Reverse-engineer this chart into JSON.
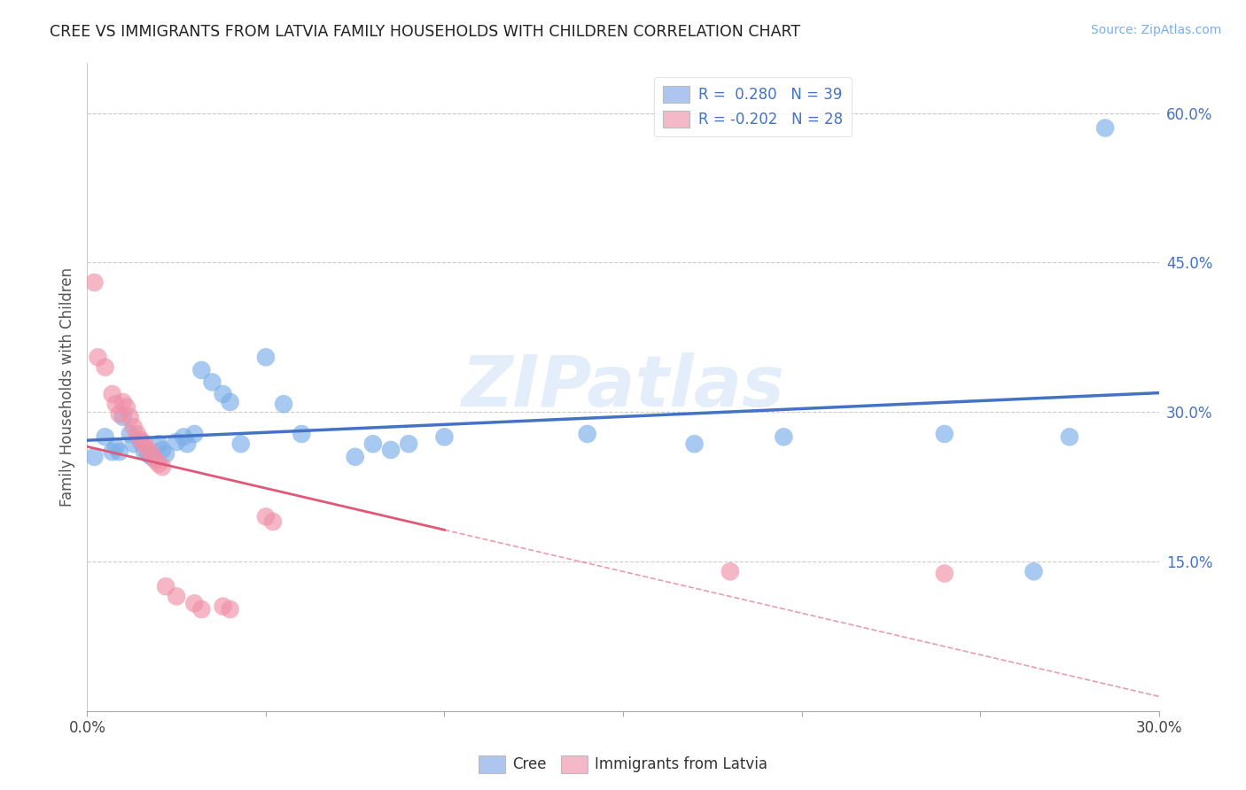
{
  "title": "CREE VS IMMIGRANTS FROM LATVIA FAMILY HOUSEHOLDS WITH CHILDREN CORRELATION CHART",
  "source": "Source: ZipAtlas.com",
  "ylabel": "Family Households with Children",
  "watermark": "ZIPatlas",
  "xlim": [
    0.0,
    0.3
  ],
  "ylim": [
    0.0,
    0.65
  ],
  "x_ticks": [
    0.0,
    0.05,
    0.1,
    0.15,
    0.2,
    0.25,
    0.3
  ],
  "x_tick_labels": [
    "0.0%",
    "",
    "",
    "",
    "",
    "",
    "30.0%"
  ],
  "y_ticks_right": [
    0.15,
    0.3,
    0.45,
    0.6
  ],
  "y_tick_labels_right": [
    "15.0%",
    "30.0%",
    "45.0%",
    "60.0%"
  ],
  "legend_r1": "R =  0.280   N = 39",
  "legend_r2": "R = -0.202   N = 28",
  "legend_color1": "#aec6ef",
  "legend_color2": "#f4b8c8",
  "cree_color": "#7aaee8",
  "latvia_color": "#f090a8",
  "trendline_cree_color": "#4472c4",
  "trendline_latvia_color": "#e05878",
  "cree_points": [
    [
      0.002,
      0.255
    ],
    [
      0.005,
      0.275
    ],
    [
      0.007,
      0.26
    ],
    [
      0.008,
      0.265
    ],
    [
      0.009,
      0.26
    ],
    [
      0.01,
      0.295
    ],
    [
      0.012,
      0.278
    ],
    [
      0.013,
      0.268
    ],
    [
      0.015,
      0.27
    ],
    [
      0.016,
      0.26
    ],
    [
      0.017,
      0.258
    ],
    [
      0.018,
      0.255
    ],
    [
      0.02,
      0.268
    ],
    [
      0.021,
      0.262
    ],
    [
      0.022,
      0.258
    ],
    [
      0.025,
      0.27
    ],
    [
      0.027,
      0.275
    ],
    [
      0.028,
      0.268
    ],
    [
      0.03,
      0.278
    ],
    [
      0.032,
      0.342
    ],
    [
      0.035,
      0.33
    ],
    [
      0.038,
      0.318
    ],
    [
      0.04,
      0.31
    ],
    [
      0.043,
      0.268
    ],
    [
      0.05,
      0.355
    ],
    [
      0.055,
      0.308
    ],
    [
      0.06,
      0.278
    ],
    [
      0.075,
      0.255
    ],
    [
      0.08,
      0.268
    ],
    [
      0.085,
      0.262
    ],
    [
      0.09,
      0.268
    ],
    [
      0.1,
      0.275
    ],
    [
      0.14,
      0.278
    ],
    [
      0.17,
      0.268
    ],
    [
      0.195,
      0.275
    ],
    [
      0.24,
      0.278
    ],
    [
      0.265,
      0.14
    ],
    [
      0.275,
      0.275
    ],
    [
      0.285,
      0.585
    ]
  ],
  "latvia_points": [
    [
      0.002,
      0.43
    ],
    [
      0.003,
      0.355
    ],
    [
      0.005,
      0.345
    ],
    [
      0.007,
      0.318
    ],
    [
      0.008,
      0.308
    ],
    [
      0.009,
      0.298
    ],
    [
      0.01,
      0.31
    ],
    [
      0.011,
      0.305
    ],
    [
      0.012,
      0.295
    ],
    [
      0.013,
      0.285
    ],
    [
      0.014,
      0.278
    ],
    [
      0.015,
      0.272
    ],
    [
      0.016,
      0.268
    ],
    [
      0.017,
      0.262
    ],
    [
      0.018,
      0.258
    ],
    [
      0.019,
      0.252
    ],
    [
      0.02,
      0.248
    ],
    [
      0.021,
      0.245
    ],
    [
      0.022,
      0.125
    ],
    [
      0.025,
      0.115
    ],
    [
      0.03,
      0.108
    ],
    [
      0.032,
      0.102
    ],
    [
      0.038,
      0.105
    ],
    [
      0.04,
      0.102
    ],
    [
      0.05,
      0.195
    ],
    [
      0.052,
      0.19
    ],
    [
      0.18,
      0.14
    ],
    [
      0.24,
      0.138
    ]
  ]
}
